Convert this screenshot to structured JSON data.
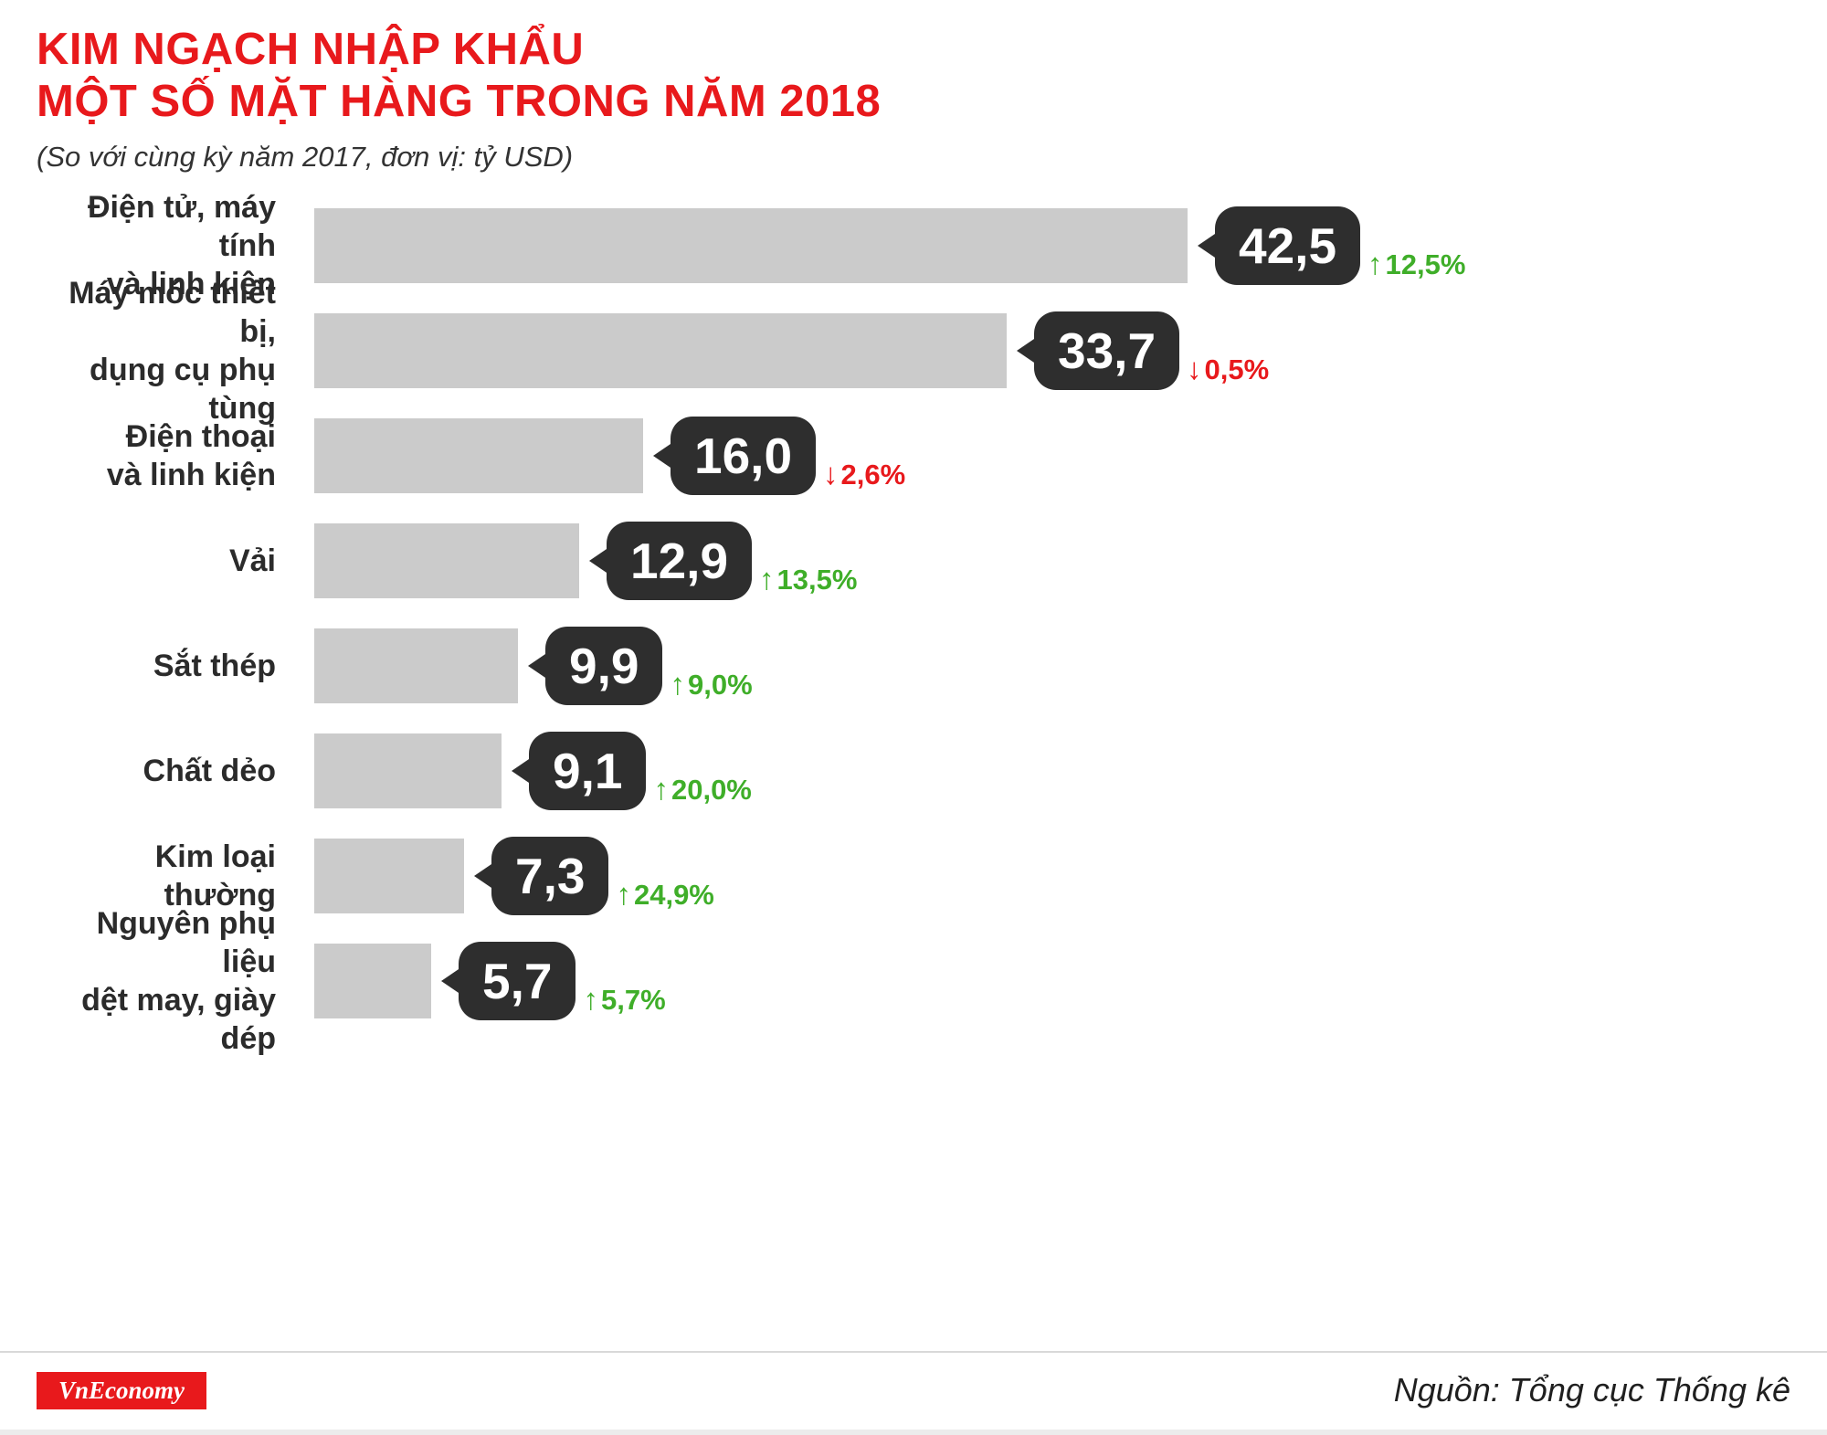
{
  "header": {
    "title_line1": "KIM NGẠCH NHẬP KHẨU",
    "title_line2": "MỘT SỐ MẶT HÀNG TRONG NĂM 2018",
    "subtitle": "(So với cùng kỳ năm 2017, đơn vị: tỷ USD)"
  },
  "chart_data": {
    "type": "bar",
    "orientation": "horizontal",
    "title": "Kim ngạch nhập khẩu một số mặt hàng trong năm 2018",
    "subtitle": "So với cùng kỳ năm 2017",
    "unit": "tỷ USD",
    "xlim": [
      0,
      42.5
    ],
    "max_value": 42.5,
    "items": [
      {
        "label": "Điện tử, máy tính\nvà linh kiện",
        "value": 42.5,
        "value_label": "42,5",
        "change": "12,5%",
        "direction": "up"
      },
      {
        "label": "Máy móc thiết bị,\ndụng cụ phụ tùng",
        "value": 33.7,
        "value_label": "33,7",
        "change": "0,5%",
        "direction": "down"
      },
      {
        "label": "Điện thoại\nvà linh kiện",
        "value": 16.0,
        "value_label": "16,0",
        "change": "2,6%",
        "direction": "down"
      },
      {
        "label": "Vải",
        "value": 12.9,
        "value_label": "12,9",
        "change": "13,5%",
        "direction": "up"
      },
      {
        "label": "Sắt thép",
        "value": 9.9,
        "value_label": "9,9",
        "change": "9,0%",
        "direction": "up"
      },
      {
        "label": "Chất dẻo",
        "value": 9.1,
        "value_label": "9,1",
        "change": "20,0%",
        "direction": "up"
      },
      {
        "label": "Kim loại thường",
        "value": 7.3,
        "value_label": "7,3",
        "change": "24,9%",
        "direction": "up"
      },
      {
        "label": "Nguyên phụ liệu\ndệt may, giày dép",
        "value": 5.7,
        "value_label": "5,7",
        "change": "5,7%",
        "direction": "up"
      }
    ],
    "colors": {
      "bar": "#cbcbcb",
      "bubble": "#2e2e2e",
      "up": "#3fae29",
      "down": "#e8191c",
      "title": "#e8191c"
    },
    "legend": "none",
    "grid": false
  },
  "icons": {
    "up_arrow": "↑",
    "down_arrow": "↓"
  },
  "footer": {
    "brand": "VnEconomy",
    "source": "Nguồn: Tổng cục Thống kê"
  }
}
